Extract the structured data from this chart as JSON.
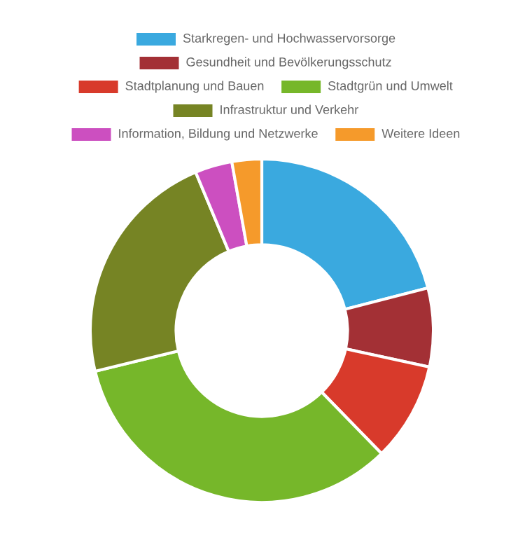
{
  "chart_data": {
    "type": "donut",
    "categories": [
      "Starkregen- und Hochwasservorsorge",
      "Gesundheit und Bevölkerungsschutz",
      "Stadtplanung und Bauen",
      "Stadtgrün und Umwelt",
      "Infrastruktur und Verkehr",
      "Information, Bildung und Netzwerke",
      "Weitere Ideen"
    ],
    "values": [
      21,
      7.4,
      9.3,
      33.5,
      22.5,
      3.5,
      2.8
    ],
    "colors": [
      "#3aa9df",
      "#a33035",
      "#d83a2b",
      "#76b72a",
      "#768424",
      "#cc4fc0",
      "#f59a2b"
    ],
    "legend": "top"
  }
}
